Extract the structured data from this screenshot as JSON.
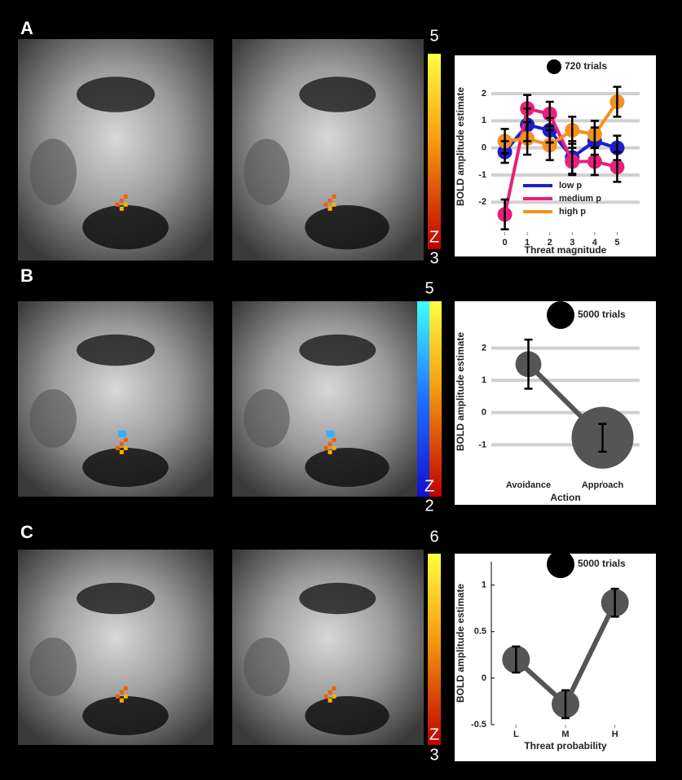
{
  "panel_labels": [
    "A",
    "B",
    "C"
  ],
  "colorbars": [
    {
      "max": 5,
      "label": "Z",
      "min": 3
    },
    {
      "max": 5,
      "label": "Z",
      "min": 2
    },
    {
      "max": 6,
      "label": "Z",
      "min": 3
    }
  ],
  "chart_data": [
    {
      "type": "line",
      "ylabel": "BOLD amplitude estimate",
      "xlabel": "Threat magnitude",
      "x": [
        0,
        1,
        2,
        3,
        4,
        5
      ],
      "xlim": [
        -0.6,
        6.0
      ],
      "xticks": [
        0,
        1,
        2,
        3,
        4,
        5
      ],
      "ylim": [
        -3.1,
        3.2
      ],
      "yticks": [
        -2,
        -1,
        0,
        1,
        2
      ],
      "grid": true,
      "legend": "lower center",
      "size_legend": {
        "value": 720,
        "label": "720 trials"
      },
      "series": [
        {
          "name": "low p",
          "color": "#1f1fc8",
          "values": [
            -0.15,
            0.85,
            0.65,
            -0.35,
            0.25,
            0.0
          ],
          "errors": [
            0.4,
            0.6,
            0.45,
            0.6,
            0.5,
            0.45
          ]
        },
        {
          "name": "medium p",
          "color": "#e8207a",
          "values": [
            -2.45,
            1.45,
            1.25,
            -0.5,
            -0.5,
            -0.7
          ],
          "errors": [
            0.55,
            0.5,
            0.45,
            0.5,
            0.5,
            0.55
          ]
        },
        {
          "name": "high p",
          "color": "#f5901e",
          "values": [
            0.25,
            0.35,
            0.1,
            0.65,
            0.5,
            1.7
          ],
          "errors": [
            0.45,
            0.6,
            0.55,
            0.5,
            0.5,
            0.55
          ]
        }
      ]
    },
    {
      "type": "line",
      "ylabel": "BOLD amplitude estimate",
      "xlabel": "Action",
      "categories": [
        "Avoidance",
        "Approach"
      ],
      "ylim": [
        -2.1,
        3.4
      ],
      "yticks": [
        -1,
        0,
        1,
        2
      ],
      "grid": true,
      "size_legend": {
        "value": 5000,
        "label": "5000 trials"
      },
      "series": [
        {
          "color": "#555555",
          "values": [
            1.5,
            -0.78
          ],
          "errors": [
            0.76,
            0.43
          ],
          "sizes": [
            4400,
            25000
          ]
        }
      ]
    },
    {
      "type": "line",
      "ylabel": "BOLD amplitude estimate",
      "xlabel": "Threat probability",
      "categories": [
        "L",
        "M",
        "H"
      ],
      "ylim": [
        -0.5,
        1.25
      ],
      "yticks": [
        -0.5,
        0,
        0.5,
        1
      ],
      "grid": false,
      "axis_line": true,
      "size_legend": {
        "value": 5000,
        "label": "5000 trials"
      },
      "series": [
        {
          "color": "#555555",
          "values": [
            0.2,
            -0.28,
            0.81
          ],
          "errors": [
            0.14,
            0.15,
            0.15
          ],
          "sizes": [
            5000,
            5000,
            5000
          ]
        }
      ]
    }
  ]
}
